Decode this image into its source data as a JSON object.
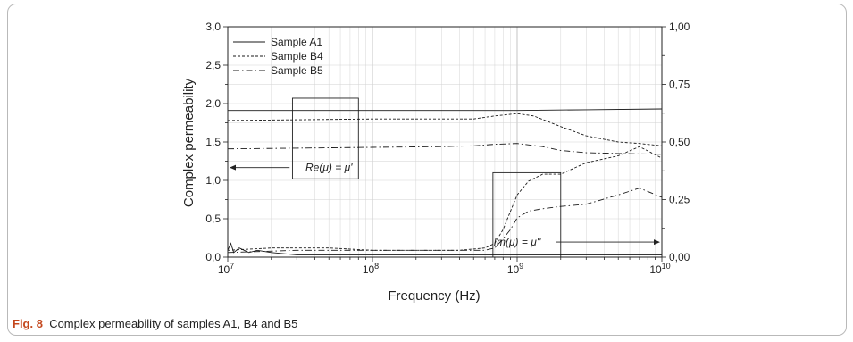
{
  "figure": {
    "caption_label": "Fig. 8",
    "caption_text": "Complex permeability of samples A1, B4 and B5"
  },
  "chart_data": {
    "type": "line",
    "xlabel": "Frequency (Hz)",
    "ylabel": "Complex permeability",
    "x_scale": "log",
    "xlim": [
      10000000,
      10000000000
    ],
    "ylim": [
      0,
      3.0
    ],
    "y2lim": [
      0,
      1.0
    ],
    "grid": true,
    "legend_position": "top-left",
    "x_ticks": [
      {
        "value": 10000000,
        "base": "10",
        "exp": "7"
      },
      {
        "value": 100000000,
        "base": "10",
        "exp": "8"
      },
      {
        "value": 1000000000,
        "base": "10",
        "exp": "9"
      },
      {
        "value": 10000000000,
        "base": "10",
        "exp": "10"
      }
    ],
    "y_ticks": [
      {
        "value": 0,
        "label": "0,0"
      },
      {
        "value": 0.5,
        "label": "0,5"
      },
      {
        "value": 1.0,
        "label": "1,0"
      },
      {
        "value": 1.5,
        "label": "1,5"
      },
      {
        "value": 2.0,
        "label": "2,0"
      },
      {
        "value": 2.5,
        "label": "2,5"
      },
      {
        "value": 3.0,
        "label": "3,0"
      }
    ],
    "y2_ticks": [
      {
        "value": 0,
        "label": "0,00"
      },
      {
        "value": 0.25,
        "label": "0,25"
      },
      {
        "value": 0.5,
        "label": "0,50"
      },
      {
        "value": 0.75,
        "label": "0,75"
      },
      {
        "value": 1.0,
        "label": "1,00"
      }
    ],
    "annotations": [
      {
        "text": "Re(μ) = μ'",
        "axis": "left",
        "box": {
          "x0": 28000000,
          "x1": 80000000,
          "y0": 1.02,
          "y1": 2.07
        },
        "text_at": {
          "x": 50000000,
          "y": 1.12
        }
      },
      {
        "text": "Im(μ) = μ''",
        "axis": "right",
        "box": {
          "x0": 680000000,
          "x1": 2000000000,
          "y0": 0.0,
          "y1": 1.1
        },
        "text_at": {
          "x": 1000000000,
          "y": 0.05
        }
      }
    ],
    "series": [
      {
        "name": "Sample A1",
        "part": "real",
        "axis": "left",
        "style": "solid",
        "x": [
          10000000,
          30000000,
          100000000,
          300000000,
          1000000000,
          3000000000,
          10000000000
        ],
        "y": [
          1.91,
          1.91,
          1.91,
          1.91,
          1.91,
          1.92,
          1.93
        ]
      },
      {
        "name": "Sample B4",
        "part": "real",
        "axis": "left",
        "style": "dashed",
        "x": [
          10000000,
          30000000,
          100000000,
          300000000,
          500000000,
          700000000,
          1000000000,
          1300000000,
          2000000000,
          3000000000,
          5000000000,
          7000000000,
          10000000000
        ],
        "y": [
          1.78,
          1.79,
          1.8,
          1.8,
          1.8,
          1.84,
          1.87,
          1.84,
          1.7,
          1.58,
          1.5,
          1.48,
          1.45
        ]
      },
      {
        "name": "Sample B5",
        "part": "real",
        "axis": "left",
        "style": "dashdot",
        "x": [
          10000000,
          30000000,
          100000000,
          300000000,
          500000000,
          700000000,
          1000000000,
          1500000000,
          2000000000,
          3000000000,
          5000000000,
          10000000000
        ],
        "y": [
          1.41,
          1.42,
          1.43,
          1.44,
          1.45,
          1.47,
          1.48,
          1.44,
          1.39,
          1.36,
          1.35,
          1.34
        ]
      },
      {
        "name": "Sample A1",
        "part": "imaginary",
        "axis": "right",
        "style": "solid",
        "x": [
          10000000,
          10500000,
          11000000,
          12000000,
          14000000,
          16000000,
          20000000,
          30000000,
          100000000,
          300000000,
          1000000000,
          3000000000,
          10000000000
        ],
        "y": [
          0.03,
          0.06,
          0.02,
          0.04,
          0.02,
          0.03,
          0.02,
          0.01,
          0.01,
          0.01,
          0.01,
          0.01,
          0.01
        ]
      },
      {
        "name": "Sample B4",
        "part": "imaginary",
        "axis": "right",
        "style": "dashed",
        "x": [
          10000000,
          20000000,
          30000000,
          50000000,
          100000000,
          200000000,
          400000000,
          600000000,
          700000000,
          800000000,
          900000000,
          1000000000,
          1200000000,
          1500000000,
          2000000000,
          3000000000,
          5000000000,
          7000000000,
          10000000000
        ],
        "y": [
          0.03,
          0.04,
          0.04,
          0.04,
          0.03,
          0.03,
          0.03,
          0.04,
          0.06,
          0.12,
          0.2,
          0.27,
          0.33,
          0.36,
          0.36,
          0.41,
          0.44,
          0.48,
          0.43
        ]
      },
      {
        "name": "Sample B5",
        "part": "imaginary",
        "axis": "right",
        "style": "dashdot",
        "x": [
          10000000,
          30000000,
          100000000,
          300000000,
          600000000,
          700000000,
          800000000,
          900000000,
          1000000000,
          1200000000,
          1500000000,
          2000000000,
          3000000000,
          5000000000,
          7000000000,
          10000000000
        ],
        "y": [
          0.02,
          0.03,
          0.03,
          0.03,
          0.03,
          0.04,
          0.08,
          0.12,
          0.17,
          0.2,
          0.21,
          0.22,
          0.23,
          0.27,
          0.3,
          0.26
        ]
      }
    ]
  }
}
